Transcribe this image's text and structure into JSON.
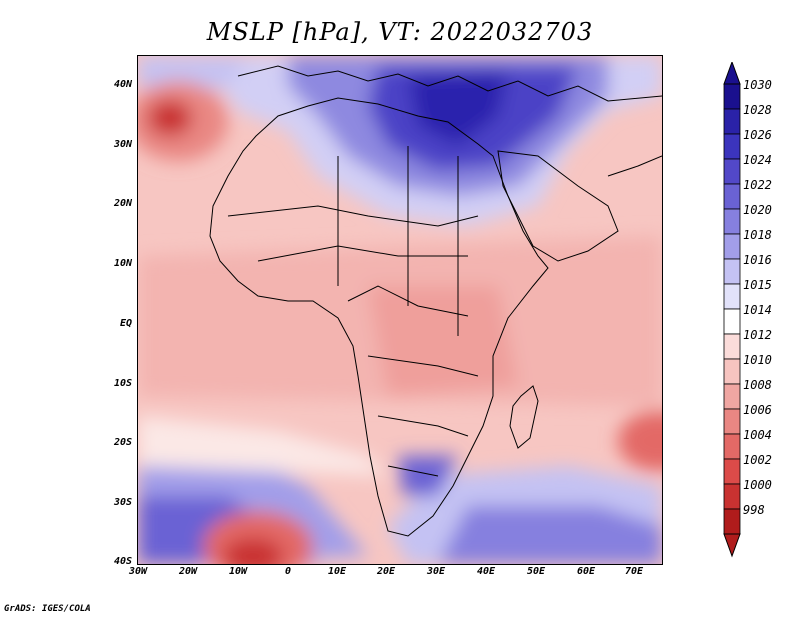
{
  "title": "MSLP [hPa], VT: 2022032703",
  "credit": "GrADS: IGES/COLA",
  "y_axis": {
    "labels": [
      "40N",
      "30N",
      "20N",
      "10N",
      "EQ",
      "10S",
      "20S",
      "30S",
      "40S"
    ]
  },
  "x_axis": {
    "labels": [
      "30W",
      "20W",
      "10W",
      "0",
      "10E",
      "20E",
      "30E",
      "40E",
      "50E",
      "60E",
      "70E"
    ]
  },
  "colorbar": {
    "levels": [
      "1030",
      "1028",
      "1026",
      "1024",
      "1022",
      "1020",
      "1018",
      "1016",
      "1015",
      "1014",
      "1012",
      "1010",
      "1008",
      "1006",
      "1004",
      "1002",
      "1000",
      "998"
    ],
    "colors": [
      "#1a108e",
      "#2a22a8",
      "#3b34bd",
      "#5248c8",
      "#6a62d4",
      "#8680df",
      "#a29ee9",
      "#c4c2f3",
      "#e2e2fa",
      "#ffffff",
      "#fbdcda",
      "#f7c4c0",
      "#f0a6a2",
      "#e98783",
      "#e36966",
      "#dc4b49",
      "#c93231",
      "#b01c1c"
    ]
  }
}
